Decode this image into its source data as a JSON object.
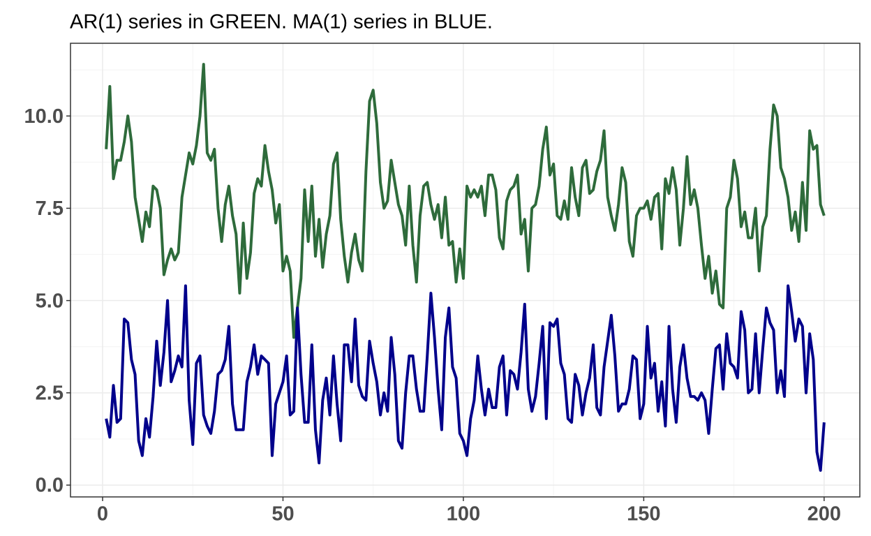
{
  "chart_data": {
    "type": "line",
    "title": "AR(1) series in GREEN. MA(1) series in BLUE.",
    "x": [
      1,
      2,
      3,
      4,
      5,
      6,
      7,
      8,
      9,
      10,
      11,
      12,
      13,
      14,
      15,
      16,
      17,
      18,
      19,
      20,
      21,
      22,
      23,
      24,
      25,
      26,
      27,
      28,
      29,
      30,
      31,
      32,
      33,
      34,
      35,
      36,
      37,
      38,
      39,
      40,
      41,
      42,
      43,
      44,
      45,
      46,
      47,
      48,
      49,
      50,
      51,
      52,
      53,
      54,
      55,
      56,
      57,
      58,
      59,
      60,
      61,
      62,
      63,
      64,
      65,
      66,
      67,
      68,
      69,
      70,
      71,
      72,
      73,
      74,
      75,
      76,
      77,
      78,
      79,
      80,
      81,
      82,
      83,
      84,
      85,
      86,
      87,
      88,
      89,
      90,
      91,
      92,
      93,
      94,
      95,
      96,
      97,
      98,
      99,
      100,
      101,
      102,
      103,
      104,
      105,
      106,
      107,
      108,
      109,
      110,
      111,
      112,
      113,
      114,
      115,
      116,
      117,
      118,
      119,
      120,
      121,
      122,
      123,
      124,
      125,
      126,
      127,
      128,
      129,
      130,
      131,
      132,
      133,
      134,
      135,
      136,
      137,
      138,
      139,
      140,
      141,
      142,
      143,
      144,
      145,
      146,
      147,
      148,
      149,
      150,
      151,
      152,
      153,
      154,
      155,
      156,
      157,
      158,
      159,
      160,
      161,
      162,
      163,
      164,
      165,
      166,
      167,
      168,
      169,
      170,
      171,
      172,
      173,
      174,
      175,
      176,
      177,
      178,
      179,
      180,
      181,
      182,
      183,
      184,
      185,
      186,
      187,
      188,
      189,
      190,
      191,
      192,
      193,
      194,
      195,
      196,
      197,
      198,
      199,
      200
    ],
    "series": [
      {
        "color": "#2e6b3b",
        "values": [
          9.1,
          10.8,
          8.3,
          8.8,
          8.8,
          9.3,
          10.0,
          9.3,
          7.8,
          7.2,
          6.6,
          7.4,
          7.0,
          8.1,
          8.0,
          7.5,
          5.7,
          6.1,
          6.4,
          6.1,
          6.3,
          7.8,
          8.4,
          9.0,
          8.7,
          9.2,
          10.0,
          11.4,
          9.0,
          8.8,
          9.1,
          7.5,
          6.6,
          7.6,
          8.1,
          7.3,
          6.8,
          5.2,
          7.1,
          5.6,
          6.3,
          7.9,
          8.3,
          8.1,
          9.2,
          8.5,
          8.0,
          7.1,
          7.6,
          5.8,
          6.2,
          5.8,
          4.0,
          4.8,
          5.6,
          8.0,
          6.6,
          8.1,
          6.2,
          7.2,
          5.9,
          6.8,
          7.3,
          8.7,
          9.0,
          7.2,
          6.2,
          5.5,
          6.3,
          6.8,
          6.1,
          5.8,
          8.5,
          10.4,
          10.7,
          9.8,
          8.2,
          7.5,
          7.7,
          8.8,
          8.2,
          7.6,
          7.3,
          6.5,
          8.1,
          6.5,
          5.5,
          7.3,
          8.1,
          8.2,
          7.6,
          7.2,
          7.6,
          6.7,
          7.8,
          6.5,
          6.6,
          5.5,
          6.4,
          5.6,
          8.1,
          7.8,
          8.0,
          7.8,
          8.1,
          7.3,
          8.4,
          8.4,
          8.0,
          6.7,
          6.4,
          7.7,
          8.0,
          8.1,
          8.4,
          6.8,
          7.2,
          5.8,
          7.5,
          7.6,
          8.1,
          9.1,
          9.7,
          8.4,
          8.7,
          7.3,
          7.2,
          7.7,
          7.2,
          8.6,
          7.8,
          7.3,
          8.6,
          8.8,
          7.9,
          8.0,
          8.5,
          8.8,
          9.6,
          7.8,
          7.3,
          6.9,
          7.6,
          8.6,
          8.2,
          6.6,
          6.2,
          7.3,
          7.5,
          7.5,
          7.7,
          7.2,
          7.8,
          7.9,
          6.4,
          8.3,
          7.9,
          8.6,
          8.0,
          6.5,
          7.5,
          8.9,
          7.6,
          8.0,
          7.5,
          6.5,
          5.6,
          6.2,
          5.2,
          5.8,
          4.9,
          4.8,
          7.5,
          7.8,
          8.8,
          8.3,
          7.0,
          7.4,
          6.7,
          6.7,
          7.5,
          5.8,
          7.0,
          7.3,
          9.1,
          10.3,
          10.0,
          8.6,
          8.3,
          7.8,
          6.9,
          7.4,
          6.6,
          8.2,
          6.9,
          9.6,
          9.1,
          9.2,
          7.6,
          7.3
        ]
      },
      {
        "color": "#00008b",
        "values": [
          1.8,
          1.3,
          2.7,
          1.7,
          1.8,
          4.5,
          4.4,
          3.4,
          3.0,
          1.2,
          0.8,
          1.8,
          1.3,
          2.4,
          3.9,
          2.7,
          3.6,
          5.0,
          2.8,
          3.1,
          3.5,
          3.2,
          5.4,
          2.3,
          1.1,
          3.3,
          3.5,
          1.9,
          1.6,
          1.4,
          2.0,
          3.0,
          3.1,
          3.4,
          4.3,
          2.2,
          1.5,
          1.5,
          1.5,
          2.8,
          3.2,
          3.8,
          3.0,
          3.5,
          3.4,
          3.3,
          0.8,
          2.2,
          2.5,
          2.8,
          3.5,
          1.9,
          2.0,
          4.8,
          3.0,
          1.7,
          1.7,
          3.8,
          1.5,
          0.6,
          2.3,
          2.9,
          1.9,
          3.5,
          2.2,
          1.2,
          3.8,
          3.8,
          2.8,
          4.5,
          2.7,
          2.4,
          2.3,
          3.9,
          3.3,
          2.8,
          1.9,
          2.5,
          2.0,
          4.0,
          3.0,
          1.2,
          1.0,
          2.5,
          3.5,
          3.5,
          2.6,
          2.0,
          2.0,
          3.5,
          5.2,
          4.0,
          2.6,
          1.5,
          4.0,
          4.8,
          3.2,
          2.9,
          1.4,
          1.2,
          0.8,
          1.8,
          2.3,
          3.5,
          2.6,
          1.9,
          2.6,
          2.1,
          2.1,
          3.2,
          3.5,
          1.9,
          3.1,
          3.0,
          2.6,
          3.6,
          4.9,
          2.6,
          2.0,
          2.4,
          3.3,
          4.3,
          1.8,
          4.4,
          4.3,
          4.5,
          3.3,
          3.0,
          1.8,
          1.7,
          3.0,
          2.7,
          1.9,
          2.5,
          2.9,
          3.8,
          2.1,
          1.9,
          3.2,
          3.9,
          4.6,
          3.5,
          2.0,
          2.2,
          2.2,
          2.6,
          3.5,
          3.4,
          1.8,
          2.2,
          4.3,
          2.9,
          3.3,
          2.0,
          2.8,
          1.6,
          4.3,
          2.6,
          1.7,
          3.2,
          3.8,
          2.9,
          2.4,
          2.4,
          2.3,
          2.5,
          2.3,
          1.4,
          2.6,
          3.7,
          3.8,
          2.6,
          4.1,
          3.3,
          3.2,
          2.9,
          4.7,
          4.2,
          2.5,
          2.6,
          4.1,
          2.5,
          3.7,
          4.8,
          4.4,
          4.2,
          2.5,
          3.1,
          2.4,
          5.4,
          4.7,
          3.9,
          4.5,
          4.3,
          2.5,
          4.1,
          3.4,
          0.9,
          0.4,
          1.7
        ]
      }
    ],
    "xlim": [
      -8.9,
      209.9
    ],
    "xticks": [
      0,
      50,
      100,
      150,
      200
    ],
    "xminor": [
      25,
      75,
      125,
      175
    ],
    "ylim": [
      -0.32,
      11.97
    ],
    "yticks": [
      {
        "value": 0,
        "label": "0.0"
      },
      2.5,
      {
        "value": 5,
        "label": "5.0"
      },
      7.5,
      {
        "value": 10,
        "label": "10.0"
      }
    ],
    "yminor": [
      1.25,
      3.75,
      6.25,
      8.75,
      11.25
    ],
    "grid": true
  }
}
